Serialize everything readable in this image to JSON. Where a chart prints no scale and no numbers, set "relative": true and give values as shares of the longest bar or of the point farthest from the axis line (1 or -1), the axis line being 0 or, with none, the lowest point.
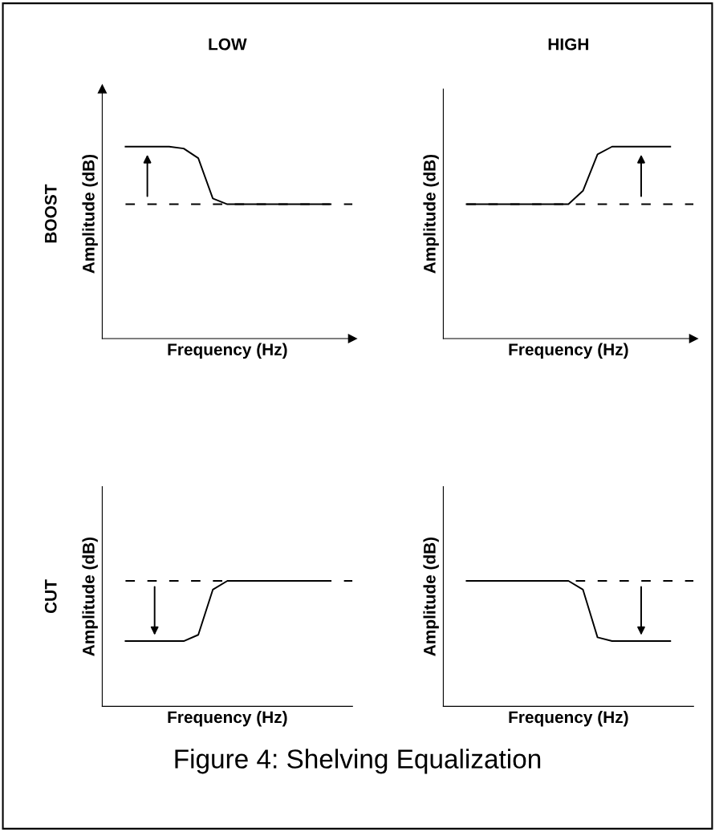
{
  "chart_data": [
    {
      "type": "line",
      "title": "LOW",
      "annotations": [
        "BOOST"
      ],
      "xlabel": "Frequency (Hz)",
      "ylabel": "Amplitude (dB)",
      "relative": true,
      "categories": [
        null,
        null,
        null,
        null,
        null,
        null,
        null,
        null,
        null,
        null,
        null,
        null,
        null,
        null,
        null
      ],
      "series": [
        {
          "color": "#000000",
          "values": [
            1,
            1,
            1,
            1,
            0.99,
            0.94,
            0.73,
            0.7,
            0.7,
            0.7,
            0.7,
            0.7,
            0.7,
            0.7,
            0.7
          ]
        }
      ],
      "ref_lines": [
        {
          "axis": "y",
          "value": 0.7,
          "color": "#000000",
          "line_style": "dashed"
        }
      ],
      "line_style": "solid",
      "marker": "none",
      "grid": false,
      "legend": false,
      "tick_labels": false
    },
    {
      "type": "line",
      "title": "HIGH",
      "xlabel": "Frequency (Hz)",
      "ylabel": "Amplitude (dB)",
      "relative": true,
      "categories": [
        null,
        null,
        null,
        null,
        null,
        null,
        null,
        null,
        null,
        null,
        null,
        null,
        null,
        null,
        null
      ],
      "series": [
        {
          "color": "#000000",
          "values": [
            0.7,
            0.7,
            0.7,
            0.7,
            0.7,
            0.7,
            0.7,
            0.7,
            0.77,
            0.96,
            1,
            1,
            1,
            1,
            1
          ]
        }
      ],
      "ref_lines": [
        {
          "axis": "y",
          "value": 0.7,
          "color": "#000000",
          "line_style": "dashed"
        }
      ],
      "line_style": "solid",
      "marker": "none",
      "grid": false,
      "legend": false,
      "tick_labels": false
    },
    {
      "type": "line",
      "annotations": [
        "CUT"
      ],
      "xlabel": "Frequency (Hz)",
      "ylabel": "Amplitude (dB)",
      "relative": true,
      "categories": [
        null,
        null,
        null,
        null,
        null,
        null,
        null,
        null,
        null,
        null,
        null,
        null,
        null,
        null,
        null
      ],
      "series": [
        {
          "color": "#000000",
          "values": [
            0.52,
            0.52,
            0.52,
            0.52,
            0.52,
            0.57,
            0.93,
            1,
            1,
            1,
            1,
            1,
            1,
            1,
            1
          ]
        }
      ],
      "ref_lines": [
        {
          "axis": "y",
          "value": 1,
          "color": "#000000",
          "line_style": "dashed"
        }
      ],
      "line_style": "solid",
      "marker": "none",
      "grid": false,
      "legend": false,
      "tick_labels": false
    },
    {
      "type": "line",
      "annotations": [
        "Figure 4: Shelving Equalization"
      ],
      "xlabel": "Frequency (Hz)",
      "ylabel": "Amplitude (dB)",
      "relative": true,
      "categories": [
        null,
        null,
        null,
        null,
        null,
        null,
        null,
        null,
        null,
        null,
        null,
        null,
        null,
        null,
        null
      ],
      "series": [
        {
          "color": "#000000",
          "values": [
            1,
            1,
            1,
            1,
            1,
            1,
            1,
            1,
            0.93,
            0.55,
            0.52,
            0.52,
            0.52,
            0.52,
            0.52
          ]
        }
      ],
      "ref_lines": [
        {
          "axis": "y",
          "value": 1,
          "color": "#000000",
          "line_style": "dashed"
        }
      ],
      "line_style": "solid",
      "marker": "none",
      "grid": false,
      "legend": false,
      "tick_labels": false
    }
  ]
}
